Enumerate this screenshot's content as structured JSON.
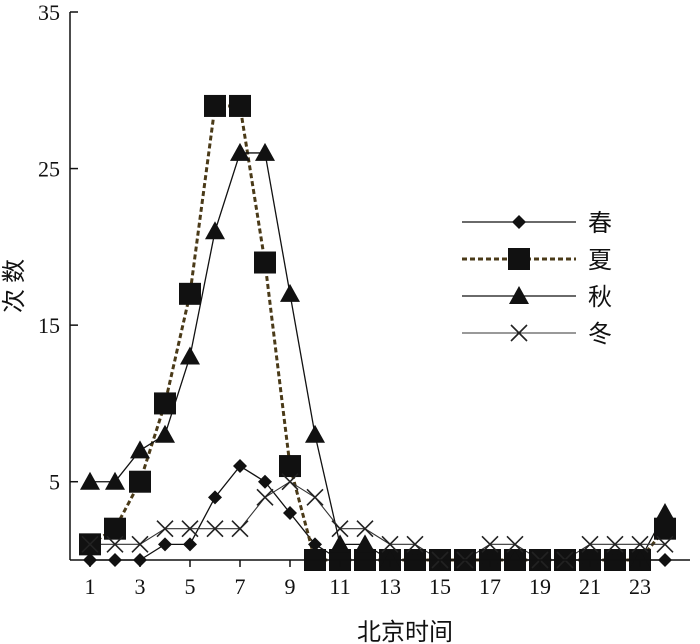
{
  "chart_data": {
    "type": "line",
    "title": "",
    "xlabel": "北京时间",
    "ylabel": "次 数",
    "x": [
      1,
      2,
      3,
      4,
      5,
      6,
      7,
      8,
      9,
      10,
      11,
      12,
      13,
      14,
      15,
      16,
      17,
      18,
      19,
      20,
      21,
      22,
      23,
      24
    ],
    "xlim": [
      0.2,
      25
    ],
    "ylim": [
      0,
      35
    ],
    "xticks": [
      "1",
      "3",
      "5",
      "7",
      "9",
      "11",
      "13",
      "15",
      "17",
      "19",
      "21",
      "23"
    ],
    "xtick_values": [
      1,
      3,
      5,
      7,
      9,
      11,
      13,
      15,
      17,
      19,
      21,
      23
    ],
    "yticks": [
      "5",
      "15",
      "25",
      "35"
    ],
    "ytick_values": [
      5,
      15,
      25,
      35
    ],
    "grid": false,
    "legend_position": "right",
    "series": [
      {
        "name": "春",
        "marker": "diamond",
        "line": "solid",
        "values": [
          0,
          0,
          0,
          1,
          1,
          4,
          6,
          5,
          3,
          1,
          0,
          0,
          0,
          0,
          0,
          0,
          0,
          0,
          0,
          0,
          0,
          0,
          0,
          0
        ]
      },
      {
        "name": "夏",
        "marker": "square",
        "line": "dashed",
        "values": [
          1,
          2,
          5,
          10,
          17,
          29,
          29,
          19,
          6,
          0,
          0,
          0,
          0,
          0,
          0,
          0,
          0,
          0,
          0,
          0,
          0,
          0,
          0,
          2
        ]
      },
      {
        "name": "秋",
        "marker": "triangle",
        "line": "solid",
        "values": [
          5,
          5,
          7,
          8,
          13,
          21,
          26,
          26,
          17,
          8,
          1,
          1,
          0,
          0,
          0,
          0,
          0,
          0,
          0,
          0,
          0,
          0,
          0,
          3
        ]
      },
      {
        "name": "冬",
        "marker": "x",
        "line": "solid-thin",
        "values": [
          1,
          1,
          1,
          2,
          2,
          2,
          2,
          4,
          5,
          4,
          2,
          2,
          1,
          1,
          0,
          0,
          1,
          1,
          0,
          0,
          1,
          1,
          1,
          1
        ]
      }
    ]
  }
}
